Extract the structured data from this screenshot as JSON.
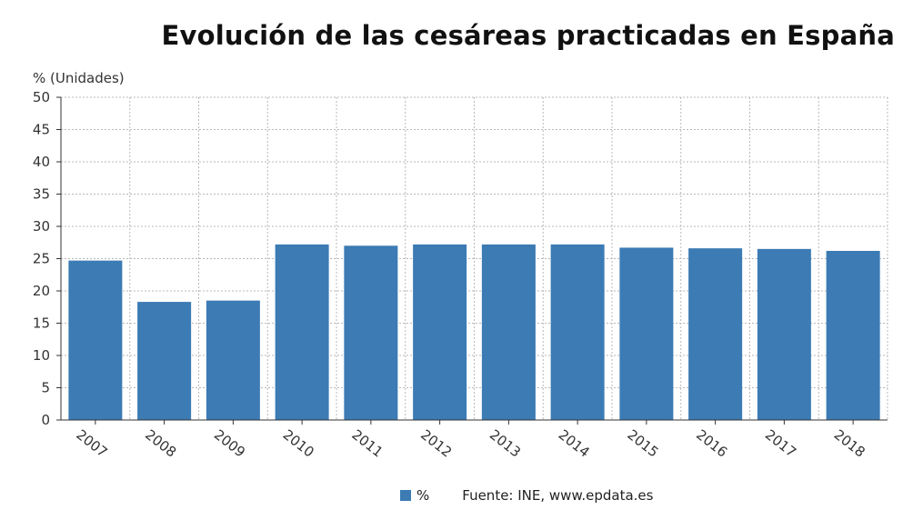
{
  "colors": {
    "bar": "#3c7bb4",
    "grid": "#b8b8b8",
    "axis": "#333333"
  },
  "chart_data": {
    "type": "bar",
    "title": "Evolución de las cesáreas practicadas en España",
    "ylabel": "% (Unidades)",
    "xlabel": "",
    "categories": [
      "2007",
      "2008",
      "2009",
      "2010",
      "2011",
      "2012",
      "2013",
      "2014",
      "2015",
      "2016",
      "2017",
      "2018"
    ],
    "series": [
      {
        "name": "%",
        "values": [
          24.7,
          18.3,
          18.5,
          27.2,
          27.0,
          27.2,
          27.2,
          27.2,
          26.7,
          26.6,
          26.5,
          26.2
        ]
      }
    ],
    "ylim": [
      0,
      50
    ],
    "yticks": [
      "0",
      "5",
      "10",
      "15",
      "20",
      "25",
      "30",
      "35",
      "40",
      "45",
      "50"
    ],
    "grid": true,
    "legend_position": "bottom",
    "source": "Fuente: INE, www.epdata.es"
  }
}
